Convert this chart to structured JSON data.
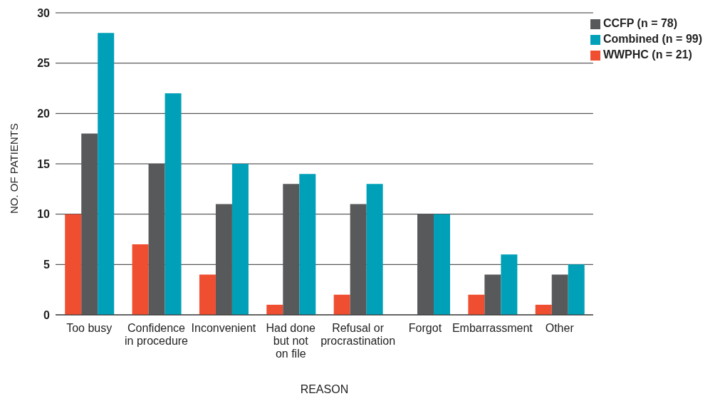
{
  "chart_data": {
    "type": "bar",
    "xlabel": "REASON",
    "ylabel": "NO. OF PATIENTS",
    "categories": [
      "Too busy",
      "Confidence\nin procedure",
      "Inconvenient",
      "Had done\nbut not\non file",
      "Refusal or\nprocrastination",
      "Forgot",
      "Embarrassment",
      "Other"
    ],
    "series": [
      {
        "name": "WWPHC (n = 21)",
        "color": "#f04e30",
        "values": [
          10,
          7,
          4,
          1,
          2,
          0,
          2,
          1
        ]
      },
      {
        "name": "CCFP (n = 78)",
        "color": "#58595b",
        "values": [
          18,
          15,
          11,
          13,
          11,
          10,
          4,
          4
        ]
      },
      {
        "name": "Combined (n = 99)",
        "color": "#00a0b8",
        "values": [
          28,
          22,
          15,
          14,
          13,
          10,
          6,
          5
        ]
      }
    ],
    "ylim": [
      0,
      30
    ],
    "yticks": [
      0,
      5,
      10,
      15,
      20,
      25,
      30
    ],
    "grid": "y",
    "legend": "top right"
  }
}
